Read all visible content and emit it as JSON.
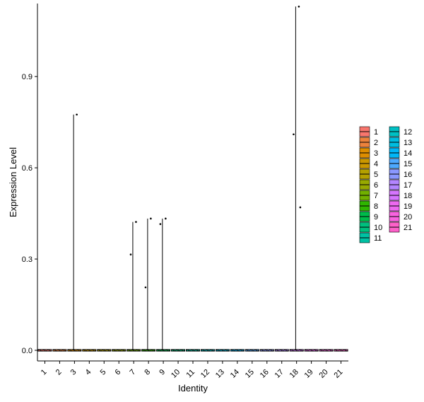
{
  "chart_data": {
    "type": "violin",
    "xlabel": "Identity",
    "ylabel": "Expression Level",
    "categories": [
      "1",
      "2",
      "3",
      "4",
      "5",
      "6",
      "7",
      "8",
      "9",
      "10",
      "11",
      "12",
      "13",
      "14",
      "15",
      "16",
      "17",
      "18",
      "19",
      "20",
      "21"
    ],
    "ylim": [
      -0.035,
      1.14
    ],
    "yticks": [
      0.0,
      0.3,
      0.6,
      0.9
    ],
    "ytick_labels": [
      "0.0",
      "0.3",
      "0.6",
      "0.9"
    ],
    "grid": false,
    "legend_position": "right",
    "legend_columns": 2,
    "series": [
      {
        "name": "1",
        "color": "#F8766D",
        "max": 0.005,
        "points": []
      },
      {
        "name": "2",
        "color": "#EC823C",
        "max": 0.005,
        "points": []
      },
      {
        "name": "3",
        "color": "#DD8D00",
        "max": 0.775,
        "points": [
          0.775
        ]
      },
      {
        "name": "4",
        "color": "#CA9700",
        "max": 0.005,
        "points": []
      },
      {
        "name": "5",
        "color": "#B3A000",
        "max": 0.005,
        "points": []
      },
      {
        "name": "6",
        "color": "#97A900",
        "max": 0.005,
        "points": []
      },
      {
        "name": "7",
        "color": "#71B000",
        "max": 0.422,
        "points": [
          0.422,
          0.315
        ]
      },
      {
        "name": "8",
        "color": "#2FB600",
        "max": 0.433,
        "points": [
          0.433,
          0.207
        ]
      },
      {
        "name": "9",
        "color": "#00BB4B",
        "max": 0.433,
        "points": [
          0.433,
          0.415
        ]
      },
      {
        "name": "10",
        "color": "#00BF7D",
        "max": 0.005,
        "points": []
      },
      {
        "name": "11",
        "color": "#00C1A3",
        "max": 0.005,
        "points": []
      },
      {
        "name": "12",
        "color": "#00C0C4",
        "max": 0.005,
        "points": []
      },
      {
        "name": "13",
        "color": "#00BDE0",
        "max": 0.005,
        "points": []
      },
      {
        "name": "14",
        "color": "#00B6F7",
        "max": 0.005,
        "points": []
      },
      {
        "name": "15",
        "color": "#4DA9FF",
        "max": 0.005,
        "points": []
      },
      {
        "name": "16",
        "color": "#8A97FF",
        "max": 0.005,
        "points": []
      },
      {
        "name": "17",
        "color": "#B385FF",
        "max": 0.005,
        "points": []
      },
      {
        "name": "18",
        "color": "#D575FE",
        "max": 1.13,
        "points": [
          1.13,
          0.71,
          0.47
        ]
      },
      {
        "name": "19",
        "color": "#EC69EF",
        "max": 0.005,
        "points": []
      },
      {
        "name": "20",
        "color": "#F863DF",
        "max": 0.005,
        "points": []
      },
      {
        "name": "21",
        "color": "#FD61C9",
        "max": 0.005,
        "points": []
      }
    ]
  }
}
